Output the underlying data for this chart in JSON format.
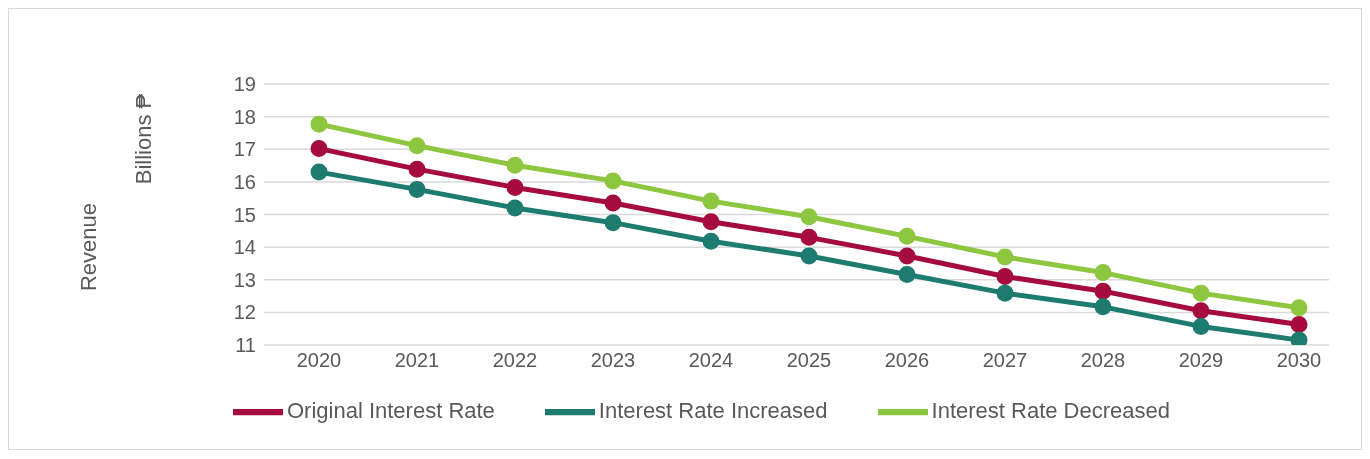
{
  "chart_data": {
    "type": "line",
    "annotations": [
      "Revenue",
      "Billions ₱"
    ],
    "categories": [
      "2020",
      "2021",
      "2022",
      "2023",
      "2024",
      "2025",
      "2026",
      "2027",
      "2028",
      "2029",
      "2030"
    ],
    "series": [
      {
        "name": "Original Interest Rate",
        "color": "#a50b3e",
        "values": [
          17.02,
          16.39,
          15.83,
          15.35,
          14.78,
          14.3,
          13.73,
          13.1,
          12.65,
          12.05,
          11.63
        ]
      },
      {
        "name": "Interest Rate Increased",
        "color": "#1d7b70",
        "values": [
          16.3,
          15.77,
          15.2,
          14.75,
          14.18,
          13.73,
          13.16,
          12.59,
          12.17,
          11.57,
          11.15
        ]
      },
      {
        "name": "Interest Rate Decreased",
        "color": "#8dc63f",
        "values": [
          17.77,
          17.11,
          16.51,
          16.03,
          15.41,
          14.93,
          14.33,
          13.7,
          13.22,
          12.59,
          12.14
        ]
      }
    ],
    "ylim": [
      11,
      19
    ],
    "yticks": [
      11,
      12,
      13,
      14,
      15,
      16,
      17,
      18,
      19
    ],
    "grid": "y",
    "legend": "bottom",
    "marker": "circle",
    "line_style": "solid"
  }
}
